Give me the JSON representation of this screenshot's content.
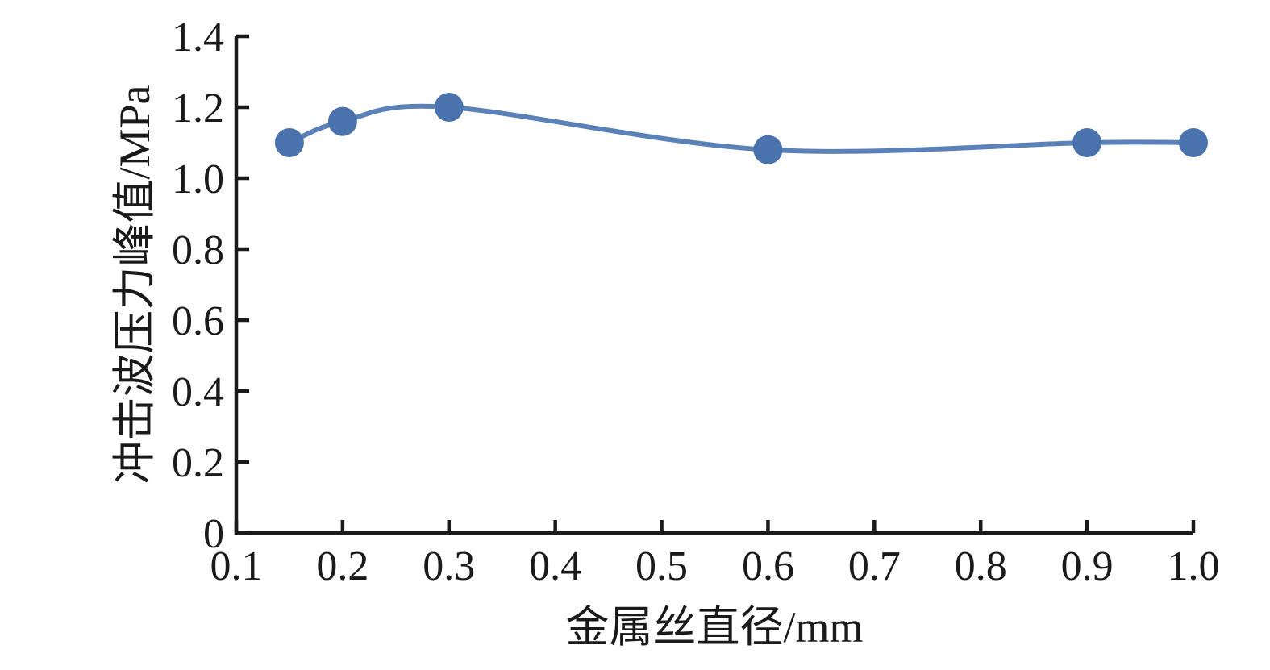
{
  "figure": {
    "background_color": "#ffffff"
  },
  "chart_data": {
    "type": "line",
    "title": "",
    "xlabel": "金属丝直径/mm",
    "ylabel": "冲击波压力峰值/MPa",
    "x": [
      0.15,
      0.2,
      0.3,
      0.6,
      0.9,
      1.0
    ],
    "y": [
      1.1,
      1.16,
      1.2,
      1.08,
      1.1,
      1.1
    ],
    "xlim": [
      0.1,
      1.0
    ],
    "ylim": [
      0,
      1.4
    ],
    "xticks": [
      0.1,
      0.2,
      0.3,
      0.4,
      0.5,
      0.6,
      0.7,
      0.8,
      0.9,
      1.0
    ],
    "xtick_labels": [
      "0.1",
      "0.2",
      "0.3",
      "0.4",
      "0.5",
      "0.6",
      "0.7",
      "0.8",
      "0.9",
      "1.0"
    ],
    "yticks": [
      0,
      0.2,
      0.4,
      0.6,
      0.8,
      1.0,
      1.2,
      1.4
    ],
    "ytick_labels": [
      "0",
      "0.2",
      "0.4",
      "0.6",
      "0.8",
      "1.0",
      "1.2",
      "1.4"
    ],
    "grid": false,
    "legend": "none",
    "line_style": "smooth",
    "line_color": "#5b82b8",
    "marker": "circle",
    "marker_color": "#4a72ad",
    "marker_radius": 18,
    "line_width": 6,
    "axis_color": "#1a1a1a",
    "tick_length": 16,
    "axis_width": 4.5
  }
}
